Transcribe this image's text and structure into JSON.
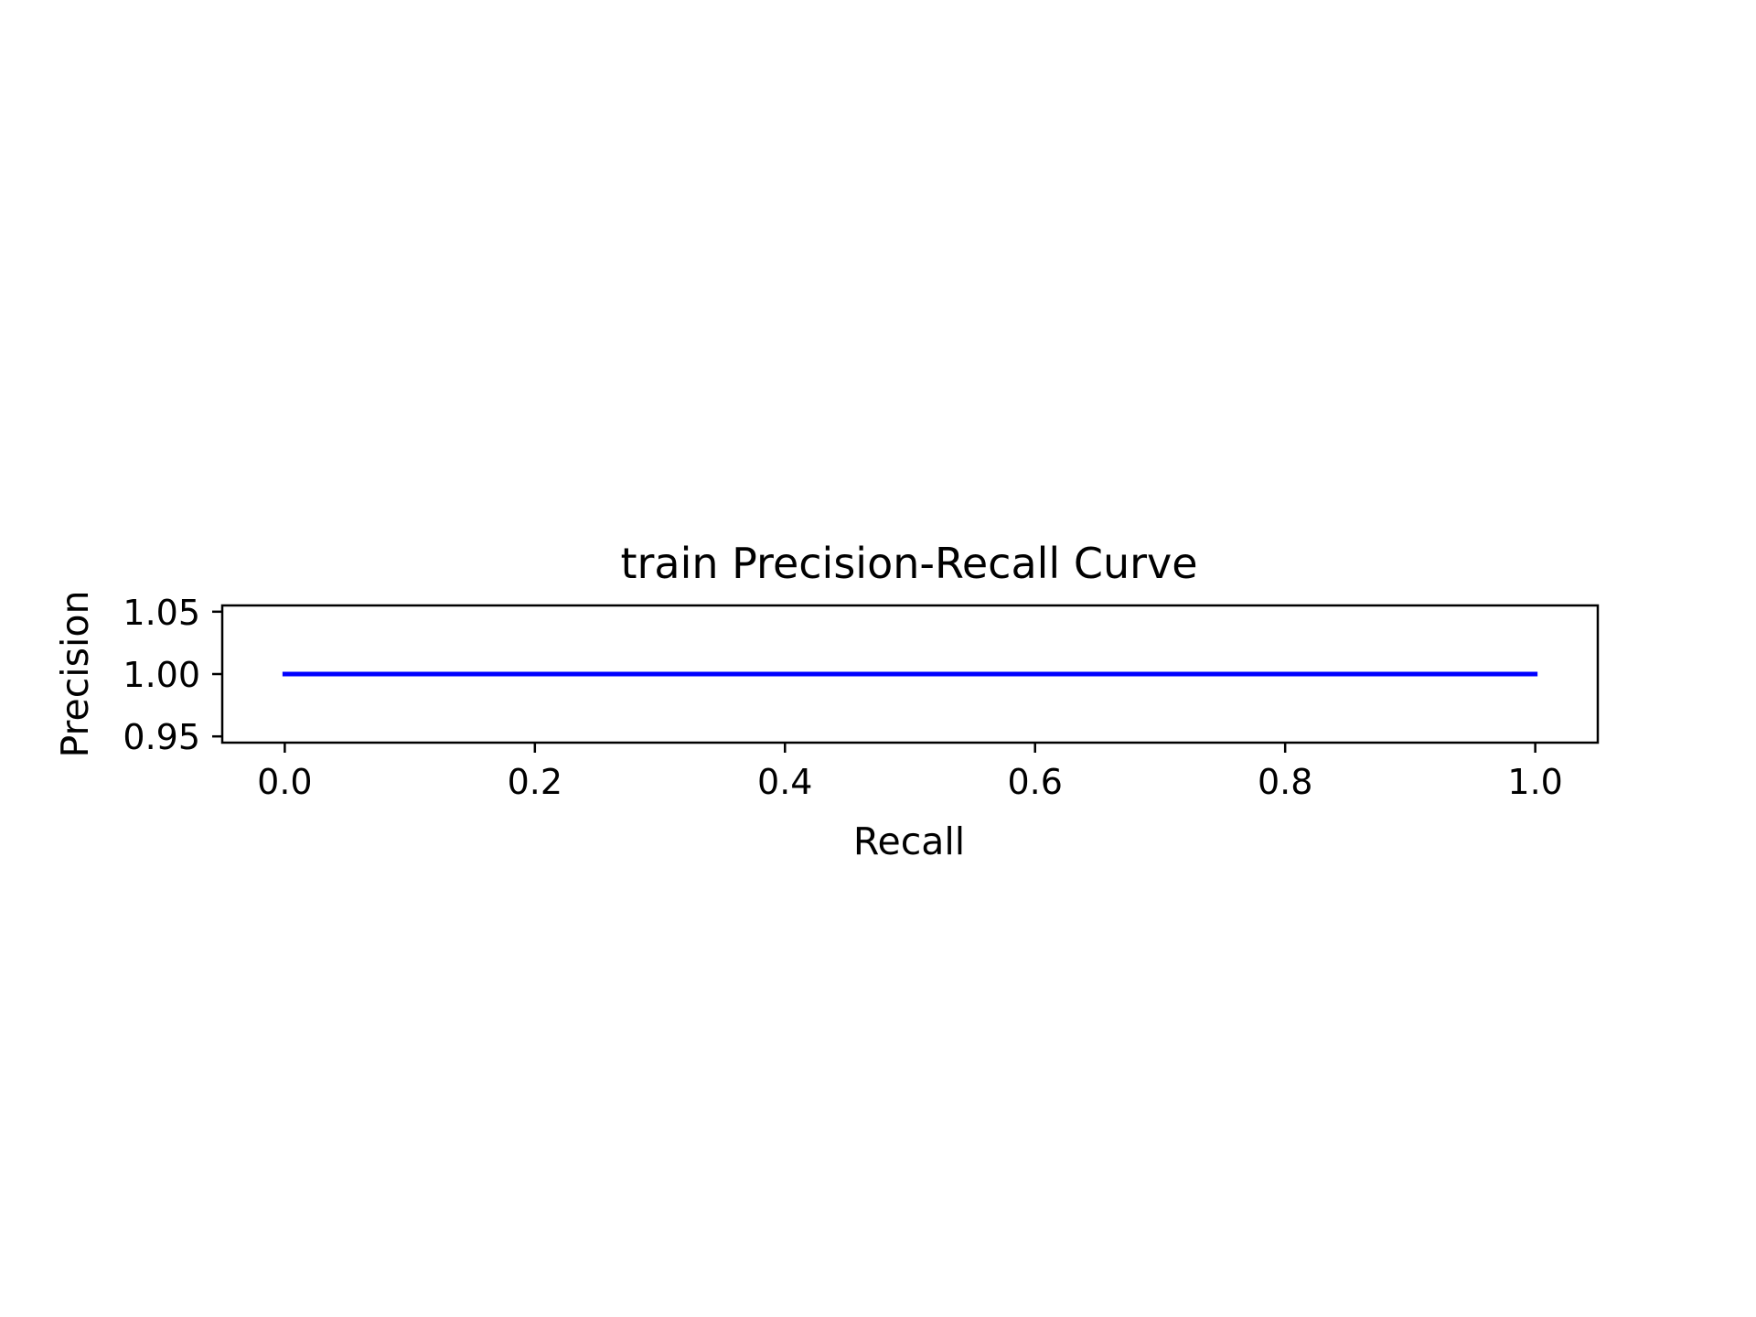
{
  "chart_data": {
    "type": "line",
    "title": "train Precision-Recall Curve",
    "xlabel": "Recall",
    "ylabel": "Precision",
    "xlim": [
      -0.05,
      1.05
    ],
    "ylim": [
      0.945,
      1.055
    ],
    "xticks": [
      0.0,
      0.2,
      0.4,
      0.6,
      0.8,
      1.0
    ],
    "xtick_labels": [
      "0.0",
      "0.2",
      "0.4",
      "0.6",
      "0.8",
      "1.0"
    ],
    "yticks": [
      0.95,
      1.0,
      1.05
    ],
    "ytick_labels": [
      "0.95",
      "1.00",
      "1.05"
    ],
    "grid": false,
    "series": [
      {
        "color": "#0000ff",
        "x": [
          0.0,
          1.0
        ],
        "y": [
          1.0,
          1.0
        ]
      }
    ]
  }
}
